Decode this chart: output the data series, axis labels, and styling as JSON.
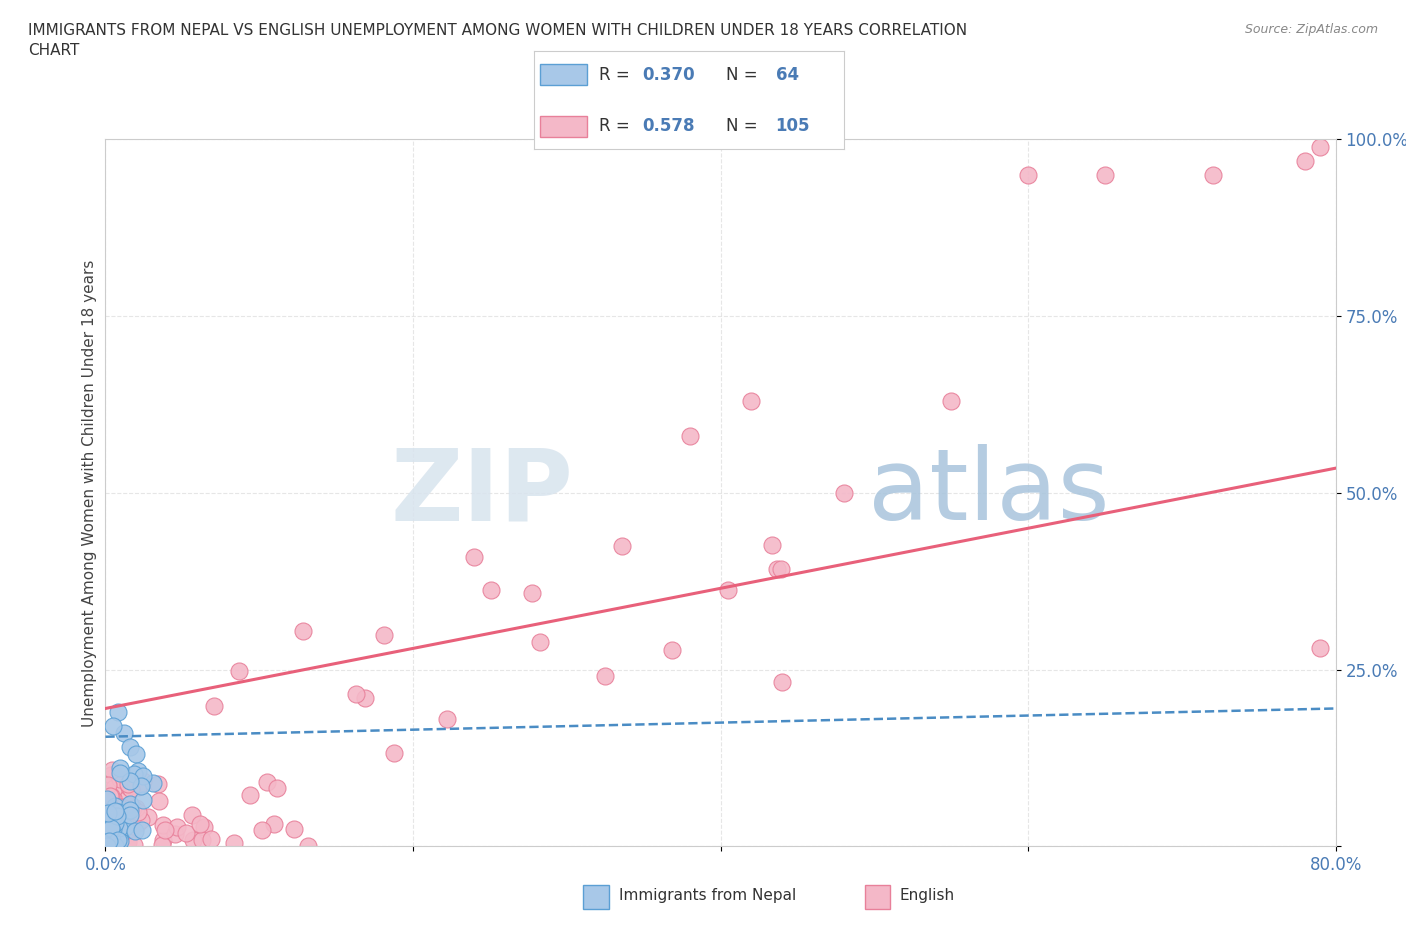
{
  "title": "IMMIGRANTS FROM NEPAL VS ENGLISH UNEMPLOYMENT AMONG WOMEN WITH CHILDREN UNDER 18 YEARS CORRELATION\nCHART",
  "source_text": "Source: ZipAtlas.com",
  "ylabel": "Unemployment Among Women with Children Under 18 years",
  "xlim": [
    0,
    0.8
  ],
  "ylim": [
    0,
    1.0
  ],
  "watermark_zip": "ZIP",
  "watermark_atlas": "atlas",
  "nepal_color": "#a8c8e8",
  "english_color": "#f4b8c8",
  "nepal_edge_color": "#5b9fd4",
  "english_edge_color": "#e8809a",
  "nepal_line_color": "#4a8cc4",
  "english_line_color": "#e8607a",
  "legend_R1": "0.370",
  "legend_N1": "64",
  "legend_R2": "0.578",
  "legend_N2": "105",
  "grid_color": "#e0e0e0",
  "background_color": "#ffffff",
  "fig_background": "#ffffff",
  "tick_color": "#4a7bb5",
  "nepal_line_start_y": 0.155,
  "nepal_line_end_y": 0.195,
  "english_line_start_y": 0.195,
  "english_line_end_y": 0.535
}
